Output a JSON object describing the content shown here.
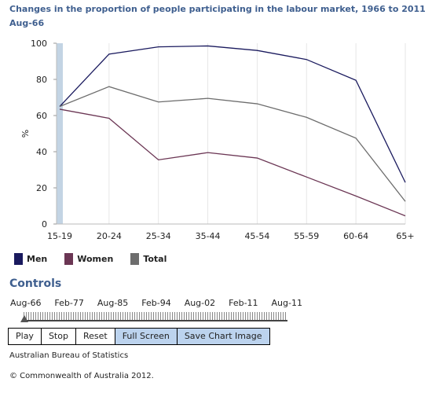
{
  "header": {
    "title": "Changes in the proportion of people participating in the labour market, 1966 to 2011",
    "period": "Aug-66"
  },
  "chart_data": {
    "type": "line",
    "title": "Changes in the proportion of people participating in the labour market, 1966 to 2011",
    "ylabel": "%",
    "xlabel": "",
    "ylim": [
      0,
      100
    ],
    "yticks": [
      0,
      20,
      40,
      60,
      80,
      100
    ],
    "categories": [
      "15-19",
      "20-24",
      "25-34",
      "35-44",
      "45-54",
      "55-59",
      "60-64",
      "65+"
    ],
    "grid": "vertical",
    "legend_position": "bottom",
    "series": [
      {
        "name": "Men",
        "color": "#1a1a5e",
        "values": [
          65,
          94,
          98,
          98.5,
          96,
          91,
          79.5,
          23
        ]
      },
      {
        "name": "Women",
        "color": "#6b3654",
        "values": [
          63.5,
          58.5,
          35.5,
          39.5,
          36.5,
          26,
          15.5,
          4.5
        ]
      },
      {
        "name": "Total",
        "color": "#6d6d6d",
        "values": [
          65,
          76,
          67.5,
          69.5,
          66.5,
          59,
          47.5,
          12.5
        ]
      }
    ],
    "highlight_category": "15-19"
  },
  "legend": {
    "items": [
      {
        "label": "Men",
        "color": "#1a1a5e"
      },
      {
        "label": "Women",
        "color": "#6b3654"
      },
      {
        "label": "Total",
        "color": "#6d6d6d"
      }
    ]
  },
  "controls": {
    "heading": "Controls",
    "slider_labels": [
      "Aug-66",
      "Feb-77",
      "Aug-85",
      "Feb-94",
      "Aug-02",
      "Feb-11",
      "Aug-11"
    ],
    "slider_position": 0,
    "buttons": {
      "play": "Play",
      "stop": "Stop",
      "reset": "Reset",
      "full_screen": "Full Screen",
      "save": "Save Chart Image"
    }
  },
  "footer": {
    "source": "Australian Bureau of Statistics",
    "copyright": "© Commonwealth of Australia 2012."
  }
}
